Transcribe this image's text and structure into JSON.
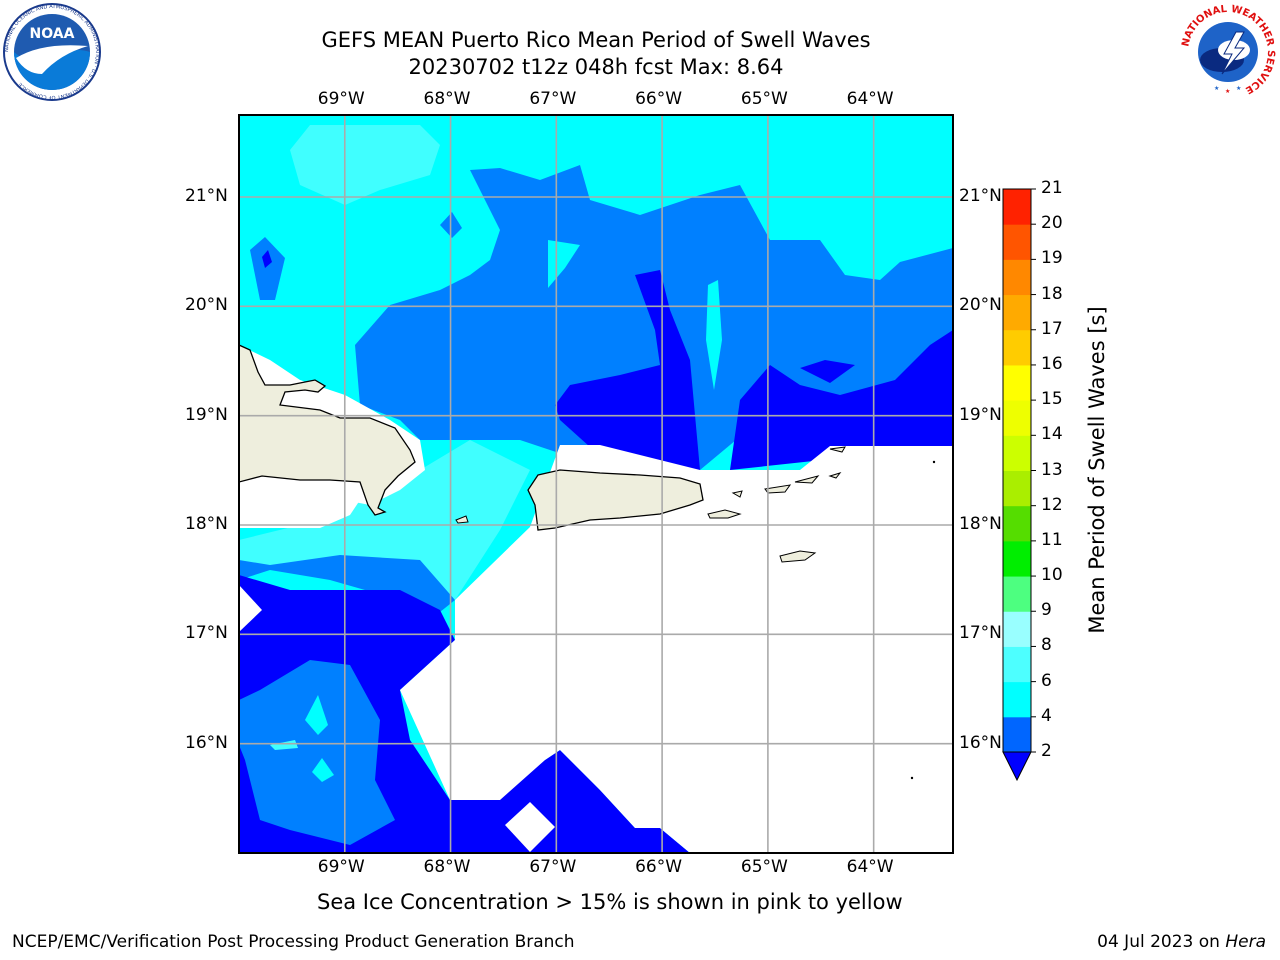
{
  "title": {
    "line1": "GEFS MEAN Puerto Rico Mean Period of Swell Waves",
    "line2": "20230702 t12z 048h fcst   Max: 8.64"
  },
  "map": {
    "type": "filled-contour",
    "region": "Puerto Rico",
    "variable": "Mean Period of Swell Waves",
    "max": 8.64,
    "lon_ticks": [
      "69°W",
      "68°W",
      "67°W",
      "66°W",
      "65°W",
      "64°W"
    ],
    "lat_ticks": [
      "21°N",
      "20°N",
      "19°N",
      "18°N",
      "17°N",
      "16°N"
    ],
    "lon_range": [
      -70.0,
      -63.25
    ],
    "lat_range": [
      15.0,
      21.75
    ],
    "grid": true
  },
  "colorbar": {
    "label": "Mean Period of Swell Waves [s]",
    "ticks": [
      "2",
      "4",
      "6",
      "8",
      "9",
      "10",
      "11",
      "12",
      "13",
      "14",
      "15",
      "16",
      "17",
      "18",
      "19",
      "20",
      "21"
    ],
    "colors": [
      "#0000ff",
      "#0066ff",
      "#00ffff",
      "#4dffff",
      "#99ffff",
      "#4dff80",
      "#00ee00",
      "#55dd00",
      "#aaee00",
      "#ccff00",
      "#eeff00",
      "#ffff00",
      "#ffcc00",
      "#ffaa00",
      "#ff8800",
      "#ff5500",
      "#ff2200",
      "#ff0000"
    ],
    "extend": "min"
  },
  "palette": {
    "land": "#eeeedd",
    "c2": "#0000ff",
    "c4": "#0080ff",
    "c6": "#00ffff",
    "c8": "#40ffff"
  },
  "note": "Sea Ice Concentration > 15% is shown in pink to yellow",
  "footer": {
    "left": "NCEP/EMC/Verification Post Processing Product Generation Branch",
    "right_prefix": "04 Jul 2023 on ",
    "right_italic": "Hera"
  },
  "logos": {
    "left": "NOAA",
    "left_ring": "NATIONAL OCEANIC AND ATMOSPHERIC ADMINISTRATION · U.S. DEPARTMENT OF COMMERCE",
    "right_ring": "NATIONAL WEATHER SERVICE"
  }
}
